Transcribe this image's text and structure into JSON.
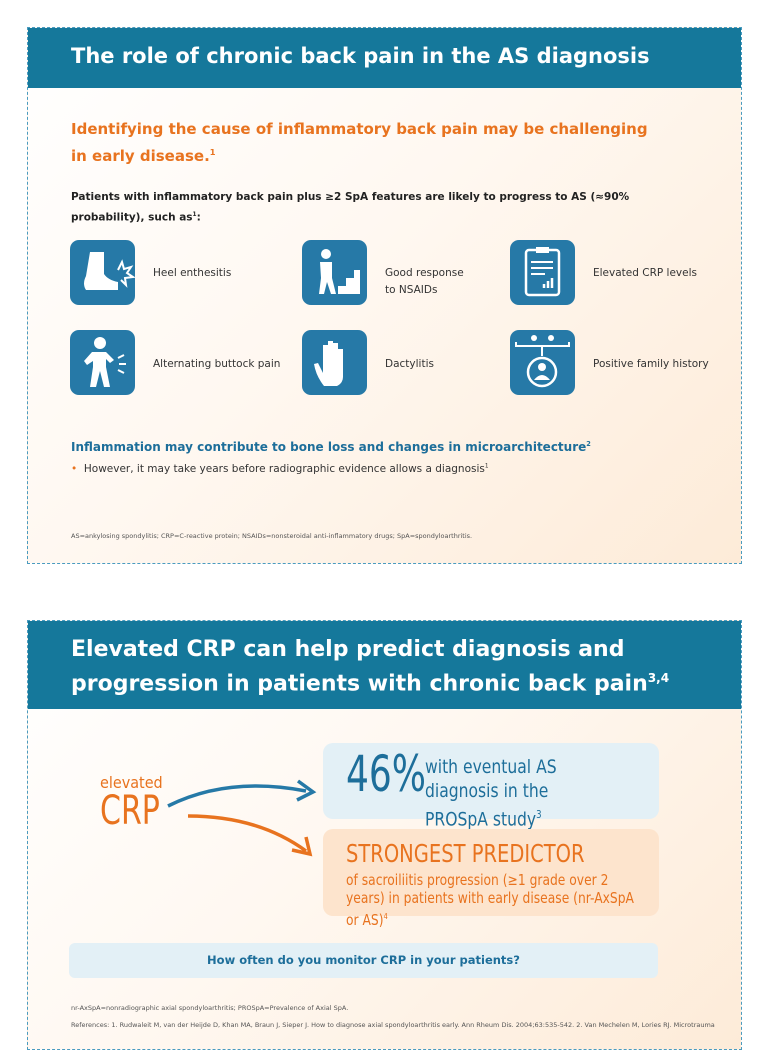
{
  "panel1": {
    "title": "The role of chronic back pain in the AS diagnosis",
    "subtitle": "Identifying the cause of inflammatory back pain may be challenging in early disease.",
    "subtitle_ref": "1",
    "intro": "Patients with inflammatory back pain plus ≥2 SpA features are likely to progress to AS (≈90% probability), such as",
    "intro_ref": "1",
    "intro_end": ":",
    "features": [
      "Heel enthesitis",
      "Good response to NSAIDs",
      "Elevated CRP levels",
      "Alternating buttock pain",
      "Dactylitis",
      "Positive family history"
    ],
    "heading": "Inflammation may contribute to bone loss and changes in microarchitecture",
    "heading_ref": "2",
    "bullet": "However, it may take years before radiographic evidence allows a diagnosis",
    "bullet_ref": "1",
    "footnote": "AS=ankylosing spondylitis; CRP=C-reactive protein; NSAIDs=nonsteroidal anti-inflammatory drugs; SpA=spondyloarthritis."
  },
  "panel2": {
    "title": "Elevated CRP can help predict diagnosis and progression in patients with chronic back pain",
    "title_ref": "3,4",
    "crp_small": "elevated",
    "crp_large": "CRP",
    "stat": "46%",
    "stat_text": "with eventual AS diagnosis in the PROSpA study",
    "stat_ref": "3",
    "predictor": "STRONGEST PREDICTOR",
    "predictor_text": "of sacroiliitis progression (≥1 grade over 2 years) in patients with early disease (nr-AxSpA or AS)",
    "predictor_ref": "4",
    "question": "How often do you monitor CRP in your patients?",
    "footnote": "nr-AxSpA=nonradiographic axial spondyloarthritis; PROSpA=Prevalence of Axial SpA.",
    "references": "References: 1. Rudwaleit M, van der Heijde D, Khan MA, Braun J, Sieper J. How to diagnose axial spondyloarthritis early. Ann Rheum Dis. 2004;63:535-542. 2. Van Mechelen M, Lories RJ. Microtrauma"
  }
}
